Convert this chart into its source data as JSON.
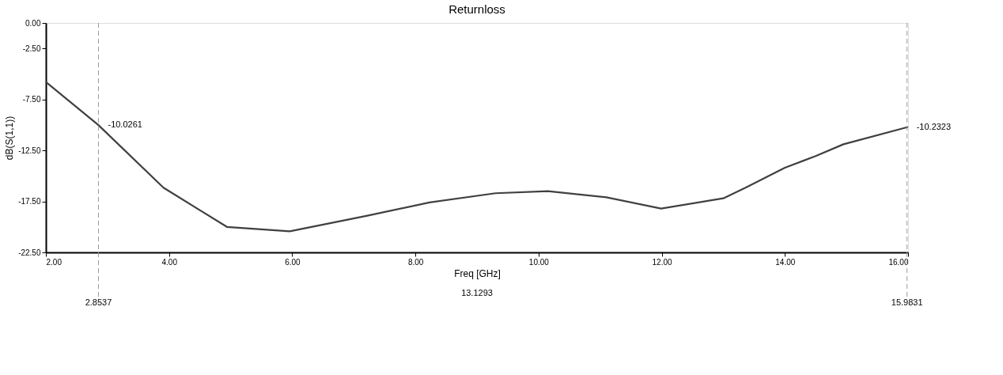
{
  "chart_data": {
    "type": "line",
    "title": "Returnloss",
    "xlabel": "Freq [GHz]",
    "ylabel": "dB(S(1,1))",
    "x": [
      2,
      2.85,
      3.91,
      4.94,
      5.96,
      7.22,
      8.23,
      9.3,
      10.15,
      11.1,
      11.99,
      13.0,
      13.36,
      14.0,
      14.5,
      14.95,
      16
    ],
    "series": [
      {
        "color": "#404040",
        "values": [
          -5.79,
          -10.0,
          -16.16,
          -20.0,
          -20.43,
          -18.9,
          -17.6,
          -16.7,
          -16.5,
          -17.1,
          -18.2,
          -17.2,
          -16.16,
          -14.2,
          -13.05,
          -11.9,
          -10.2
        ]
      }
    ],
    "xlim": [
      2,
      16
    ],
    "ylim": [
      -22.5,
      0
    ],
    "xticks": [
      {
        "value": 2,
        "label": "2.00"
      },
      {
        "value": 4,
        "label": "4.00"
      },
      {
        "value": 6,
        "label": "6.00"
      },
      {
        "value": 8,
        "label": "8.00"
      },
      {
        "value": 10,
        "label": "10.00"
      },
      {
        "value": 12,
        "label": "12.00"
      },
      {
        "value": 14,
        "label": "14.00"
      },
      {
        "value": 16,
        "label": "16.00"
      }
    ],
    "yticks": [
      {
        "value": 0,
        "label": "0.00"
      },
      {
        "value": -2.5,
        "label": "-2.50"
      },
      {
        "value": -7.5,
        "label": "-7.50"
      },
      {
        "value": -12.5,
        "label": "-12.50"
      },
      {
        "value": -17.5,
        "label": "-17.50"
      },
      {
        "value": -22.5,
        "label": "-22.50"
      }
    ],
    "ref_lines": [
      {
        "axis": "x",
        "value": 2.8537,
        "label": "2.8537",
        "line_style": "dashed",
        "color": "#999999"
      },
      {
        "axis": "x",
        "value": 15.9831,
        "label": "15.9831",
        "line_style": "dashed",
        "color": "#999999"
      }
    ],
    "annotations": [
      {
        "text": "-10.0261",
        "x": 2.8537,
        "y": -10.0261
      },
      {
        "text": "-10.2323",
        "x": 15.9831,
        "y": -10.2323
      },
      "13.1293"
    ],
    "grid": false,
    "line_style": "solid",
    "marker": "none"
  }
}
